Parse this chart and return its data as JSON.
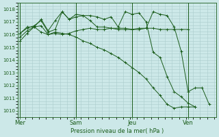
{
  "background_color": "#cce8e8",
  "grid_color": "#aacccc",
  "line_color": "#1a5c1a",
  "xlabel": "Pression niveau de la mer( hPa )",
  "ylim": [
    1009.5,
    1018.5
  ],
  "yticks": [
    1010,
    1011,
    1012,
    1013,
    1014,
    1015,
    1016,
    1017,
    1018
  ],
  "day_labels": [
    "Mer",
    "Sam",
    "Jeu",
    "Ven"
  ],
  "day_positions": [
    0,
    8,
    16,
    24
  ],
  "xlim": [
    -0.3,
    28
  ],
  "series": [
    {
      "x": [
        0,
        1,
        2,
        3,
        4,
        5,
        6,
        7,
        8,
        9,
        10,
        11,
        12,
        13,
        14,
        15,
        16,
        17,
        18,
        19,
        20,
        21,
        22,
        23,
        24,
        25
      ],
      "y": [
        1015.5,
        1016.1,
        1016.6,
        1016.7,
        1016.0,
        1016.2,
        1016.1,
        1016.0,
        1015.8,
        1015.5,
        1015.3,
        1015.0,
        1014.8,
        1014.5,
        1014.2,
        1013.8,
        1013.4,
        1013.0,
        1012.5,
        1011.8,
        1011.2,
        1010.5,
        1010.2,
        1010.3,
        1010.3,
        1010.3
      ]
    },
    {
      "x": [
        0,
        1,
        2,
        3,
        4,
        5,
        6,
        7,
        8,
        9,
        10,
        11,
        12,
        13,
        14,
        15,
        16,
        17,
        18,
        19,
        20,
        21,
        22,
        23,
        24
      ],
      "y": [
        1015.8,
        1016.3,
        1016.6,
        1016.2,
        1016.0,
        1016.1,
        1016.0,
        1016.1,
        1016.3,
        1016.4,
        1016.5,
        1016.4,
        1016.4,
        1016.5,
        1016.4,
        1016.4,
        1016.4,
        1016.4,
        1016.5,
        1016.5,
        1016.4,
        1016.4,
        1016.4,
        1016.4,
        1016.4
      ]
    },
    {
      "x": [
        0,
        1,
        2,
        3,
        4,
        5,
        6,
        7,
        8,
        9,
        10,
        11,
        12,
        13,
        14,
        15,
        16,
        17,
        18,
        19,
        20,
        21,
        22,
        23,
        24,
        25,
        26,
        27
      ],
      "y": [
        1016.1,
        1016.5,
        1016.7,
        1017.1,
        1016.2,
        1016.4,
        1017.8,
        1017.2,
        1017.6,
        1017.5,
        1017.1,
        1016.6,
        1016.6,
        1016.5,
        1016.5,
        1016.5,
        1016.4,
        1016.5,
        1016.5,
        1017.8,
        1017.6,
        1017.5,
        1016.6,
        1014.7,
        1011.5,
        1011.8,
        1011.8,
        1010.5
      ]
    },
    {
      "x": [
        0,
        1,
        2,
        3,
        4,
        5,
        6,
        7,
        8,
        9,
        10,
        11,
        12,
        13,
        14,
        15,
        16,
        17,
        18,
        19,
        20,
        21,
        22,
        23,
        24,
        25
      ],
      "y": [
        1016.1,
        1016.6,
        1016.6,
        1017.2,
        1016.3,
        1017.1,
        1017.8,
        1017.2,
        1017.4,
        1017.5,
        1017.5,
        1017.4,
        1017.2,
        1017.4,
        1016.6,
        1017.8,
        1017.6,
        1017.7,
        1017.0,
        1014.6,
        1014.2,
        1012.7,
        1011.5,
        1011.1,
        1010.6,
        1010.3
      ]
    }
  ]
}
